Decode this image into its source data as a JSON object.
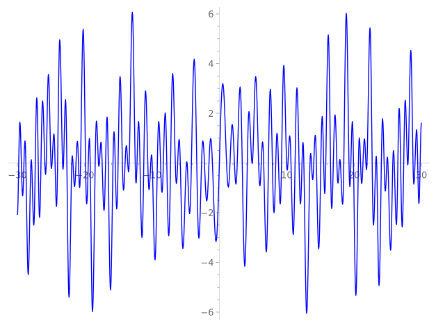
{
  "chart_data": {
    "type": "line",
    "title": "",
    "xlabel": "",
    "ylabel": "",
    "xlim": [
      -30,
      30
    ],
    "ylim": [
      -6,
      6
    ],
    "grid": false,
    "legend": "none",
    "axes_through_origin": true,
    "x_ticks": [
      -30,
      -20,
      -10,
      10,
      20,
      30
    ],
    "x_tick_labels": [
      "−30",
      "−20",
      "−10",
      "10",
      "20",
      "30"
    ],
    "y_ticks": [
      -6,
      -4,
      -2,
      2,
      4,
      6
    ],
    "y_tick_labels": [
      "−6",
      "−4",
      "−2",
      "2",
      "4",
      "6"
    ],
    "line_color": "#0000ff",
    "axis_color": "#dddddd",
    "series": [
      {
        "note_points": "local extrema read from the curve (x, y)",
        "points": [
          [
            -30.0,
            -2.09
          ],
          [
            -29.63,
            1.64
          ],
          [
            -29.22,
            -1.32
          ],
          [
            -28.87,
            0.89
          ],
          [
            -28.39,
            -4.49
          ],
          [
            -27.94,
            0.13
          ],
          [
            -27.56,
            -2.5
          ],
          [
            -27.12,
            2.62
          ],
          [
            -26.71,
            -2.19
          ],
          [
            -26.26,
            2.5
          ],
          [
            -25.81,
            -0.46
          ],
          [
            -25.39,
            3.56
          ],
          [
            -24.95,
            -0.22
          ],
          [
            -24.57,
            1.17
          ],
          [
            -24.19,
            -1.75
          ],
          [
            -23.71,
            4.96
          ],
          [
            -23.22,
            -0.25
          ],
          [
            -22.85,
            2.55
          ],
          [
            -22.33,
            -5.4
          ],
          [
            -21.85,
            0.29
          ],
          [
            -21.51,
            -0.95
          ],
          [
            -21.09,
            0.87
          ],
          [
            -20.75,
            -0.99
          ],
          [
            -20.23,
            5.38
          ],
          [
            -19.71,
            -1.65
          ],
          [
            -19.3,
            0.99
          ],
          [
            -18.85,
            -5.98
          ],
          [
            -18.26,
            1.69
          ],
          [
            -17.89,
            -0.13
          ],
          [
            -17.58,
            0.84
          ],
          [
            -17.13,
            -1.91
          ],
          [
            -16.68,
            1.85
          ],
          [
            -16.17,
            -5.11
          ],
          [
            -15.65,
            1.26
          ],
          [
            -15.24,
            -1.85
          ],
          [
            -14.75,
            3.48
          ],
          [
            -14.24,
            -1.09
          ],
          [
            -13.82,
            0.7
          ],
          [
            -13.48,
            -0.36
          ],
          [
            -12.93,
            6.07
          ],
          [
            -12.38,
            -0.81
          ],
          [
            -12.0,
            1.67
          ],
          [
            -11.49,
            -3.0
          ],
          [
            -10.97,
            2.9
          ],
          [
            -10.45,
            -1.07
          ],
          [
            -10.07,
            0.33
          ],
          [
            -9.56,
            -3.9
          ],
          [
            -9.01,
            1.67
          ],
          [
            -8.52,
            -1.18
          ],
          [
            -8.04,
            2.02
          ],
          [
            -7.52,
            -2.93
          ],
          [
            -6.94,
            3.6
          ],
          [
            -6.39,
            -0.83
          ],
          [
            -5.98,
            0.95
          ],
          [
            -5.42,
            -3.44
          ],
          [
            -4.84,
            0.05
          ],
          [
            -4.42,
            -2.04
          ],
          [
            -3.74,
            4.18
          ],
          [
            -3.05,
            -3.03
          ],
          [
            -2.46,
            0.89
          ],
          [
            -1.88,
            -1.53
          ],
          [
            -1.29,
            0.99
          ],
          [
            -0.5,
            -3.16
          ],
          [
            0.5,
            3.2
          ],
          [
            1.33,
            -0.97
          ],
          [
            1.91,
            1.55
          ],
          [
            2.46,
            -0.85
          ],
          [
            3.08,
            3.06
          ],
          [
            3.77,
            -4.16
          ],
          [
            4.39,
            2.07
          ],
          [
            4.87,
            -0.02
          ],
          [
            5.39,
            3.48
          ],
          [
            6.01,
            -0.92
          ],
          [
            6.42,
            0.85
          ],
          [
            6.97,
            -3.58
          ],
          [
            7.56,
            2.97
          ],
          [
            8.11,
            -2.0
          ],
          [
            8.56,
            1.2
          ],
          [
            9.04,
            -1.65
          ],
          [
            9.56,
            3.93
          ],
          [
            10.07,
            -0.29
          ],
          [
            10.45,
            1.09
          ],
          [
            10.97,
            -2.88
          ],
          [
            11.52,
            3.03
          ],
          [
            12.04,
            -1.65
          ],
          [
            12.42,
            0.83
          ],
          [
            12.96,
            -6.05
          ],
          [
            13.55,
            0.39
          ],
          [
            13.86,
            -0.67
          ],
          [
            14.24,
            1.12
          ],
          [
            14.75,
            -3.46
          ],
          [
            15.27,
            1.88
          ],
          [
            15.65,
            -1.23
          ],
          [
            16.17,
            5.16
          ],
          [
            16.68,
            -1.83
          ],
          [
            17.17,
            1.94
          ],
          [
            17.61,
            -0.81
          ],
          [
            17.89,
            0.14
          ],
          [
            18.31,
            -1.66
          ],
          [
            18.85,
            6.02
          ],
          [
            19.37,
            -0.95
          ],
          [
            19.75,
            1.67
          ],
          [
            20.27,
            -5.33
          ],
          [
            20.78,
            1.01
          ],
          [
            21.13,
            -0.83
          ],
          [
            21.54,
            0.97
          ],
          [
            21.85,
            -0.27
          ],
          [
            22.37,
            5.44
          ],
          [
            22.88,
            -2.5
          ],
          [
            23.3,
            0.27
          ],
          [
            23.71,
            -4.93
          ],
          [
            24.23,
            1.78
          ],
          [
            24.64,
            -1.13
          ],
          [
            24.95,
            0.24
          ],
          [
            25.43,
            -3.51
          ],
          [
            25.85,
            0.5
          ],
          [
            26.29,
            -2.48
          ],
          [
            26.7,
            2.2
          ],
          [
            27.15,
            -2.58
          ],
          [
            27.6,
            2.53
          ],
          [
            27.98,
            -0.08
          ],
          [
            28.43,
            4.53
          ],
          [
            28.87,
            -0.85
          ],
          [
            29.29,
            1.34
          ],
          [
            29.63,
            -1.63
          ],
          [
            30.0,
            1.62
          ]
        ]
      }
    ]
  }
}
